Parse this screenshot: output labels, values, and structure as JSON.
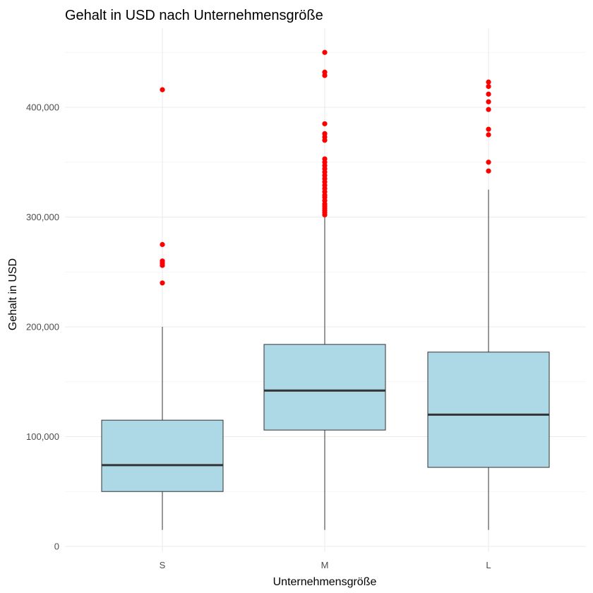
{
  "chart_data": {
    "type": "boxplot",
    "title": "Gehalt in USD nach Unternehmensgröße",
    "xlabel": "Unternehmensgröße",
    "ylabel": "Gehalt in USD",
    "categories": [
      "S",
      "M",
      "L"
    ],
    "ylim": [
      -5000,
      470000
    ],
    "yticks": [
      0,
      100000,
      200000,
      300000,
      400000
    ],
    "ytick_labels": [
      "0",
      "100,000",
      "200,000",
      "300,000",
      "400,000"
    ],
    "grid": true,
    "box_fill": "#add8e6",
    "outlier_color": "#ff0000",
    "boxes": [
      {
        "category": "S",
        "whisker_low": 15000,
        "q1": 50000,
        "median": 74000,
        "q3": 115000,
        "whisker_high": 200000,
        "outliers": [
          240000,
          256000,
          258000,
          260000,
          275000,
          416000
        ]
      },
      {
        "category": "M",
        "whisker_low": 15000,
        "q1": 106000,
        "median": 142000,
        "q3": 184000,
        "whisker_high": 300000,
        "outliers": [
          302000,
          304000,
          306000,
          308000,
          310000,
          312000,
          315000,
          318000,
          320000,
          323000,
          326000,
          329000,
          332000,
          335000,
          338000,
          341000,
          344000,
          347000,
          350000,
          353000,
          370000,
          373000,
          376000,
          385000,
          429000,
          432000,
          450000
        ]
      },
      {
        "category": "L",
        "whisker_low": 15000,
        "q1": 72000,
        "median": 120000,
        "q3": 177000,
        "whisker_high": 325000,
        "outliers": [
          342000,
          350000,
          375000,
          380000,
          398000,
          405000,
          412000,
          419000,
          423000
        ]
      }
    ]
  }
}
